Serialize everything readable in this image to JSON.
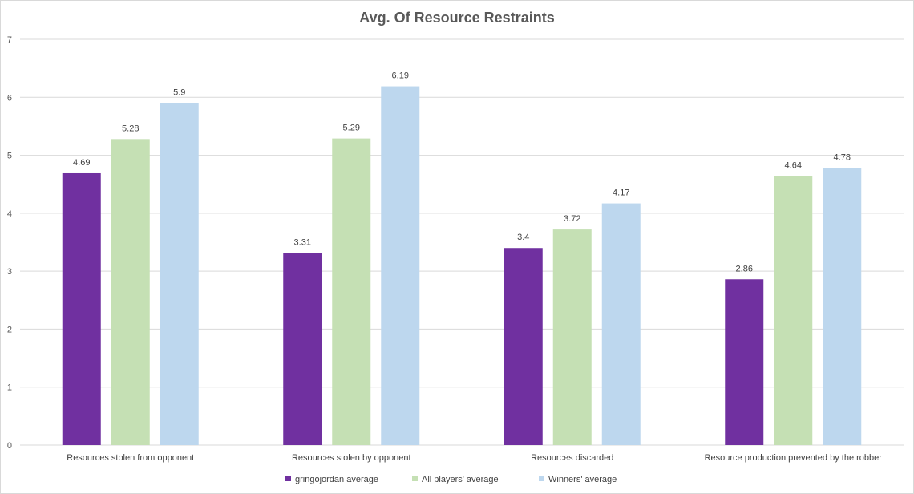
{
  "chart_data": {
    "type": "bar",
    "title": "Avg. Of Resource Restraints",
    "xlabel": "",
    "ylabel": "",
    "ylim": [
      0,
      7
    ],
    "yticks": [
      0,
      1,
      2,
      3,
      4,
      5,
      6,
      7
    ],
    "grid": true,
    "legend_position": "bottom",
    "categories": [
      "Resources stolen from opponent",
      "Resources stolen by opponent",
      "Resources discarded",
      "Resource production prevented by the robber"
    ],
    "series": [
      {
        "name": "gringojordan average",
        "color": "#7030a0",
        "values": [
          4.69,
          3.31,
          3.4,
          2.86
        ]
      },
      {
        "name": "All players' average",
        "color": "#c5e0b4",
        "values": [
          5.28,
          5.29,
          3.72,
          4.64
        ]
      },
      {
        "name": "Winners' average",
        "color": "#bdd7ee",
        "values": [
          5.9,
          6.19,
          4.17,
          4.78
        ]
      }
    ]
  }
}
